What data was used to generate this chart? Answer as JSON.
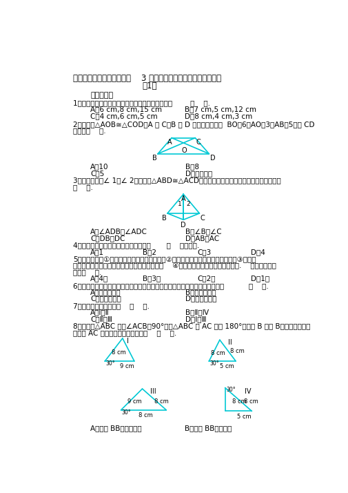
{
  "bg_color": "#ffffff",
  "cyan_color": "#00c8d4",
  "title_line1": "北师大版七年级数学下册第    3 章《三角形》单元测试试卷及答案",
  "title_line2": "（1）",
  "q1": "1．以下列各组长度的线段为边，能构成三角形的是        （    ）.",
  "q1A": "A．6 cm,8 cm,15 cm",
  "q1B": "B．7 cm,5 cm,12 cm",
  "q1C": "C．4 cm,6 cm,5 cm",
  "q1D": "D．8 cm,4 cm,3 cm",
  "q2": "2．如图，△AOB≅△COD，A 和 C，B 和 D 是对应顶点，若  BO＝6，AO＝3，AB＝5，则 CD",
  "q2b": "的长为（    ）.",
  "q2A": "A．10",
  "q2B": "B．8",
  "q2C": "C．5",
  "q2D": "D．不能确定",
  "q3": "3．如图，已知∠ 1＝∠ 2，要说明△ABD≅△ACD，还需从下列条件中选一个，错误的选法是",
  "q3b": "（    ）.",
  "q3A": "A．∠ADB＝∠ADC",
  "q3B": "B．∠B＝∠C",
  "q3C": "C．DB＝DC",
  "q3D": "D．AB＝AC",
  "q4": "4．要使五边形木架不变形，须至少钉上       （    ）根木条.",
  "q4A": "A．1",
  "q4B": "B．2",
  "q4C": "C．3",
  "q4D": "D．4",
  "q5a": "5．下列语句：①面积相等的两个三角形全等；②两个等边三角形一定是全等图形；③如果两",
  "q5b": "个三角形全等，它们的形状和大小一定都相同；    ④边数相同的图形一定能互相重合.    其中错误的说",
  "q5c": "法有（    ）.",
  "q5A": "A．4个",
  "q5B": "B．3个",
  "q5C": "C．2个",
  "q5D": "D．1个",
  "q6": "6．如果一个三角形的三条高所在直线的交点在三角形外部，那么这个三角形是           （    ）.",
  "q6A": "A．锐角三角形",
  "q6B": "B．直角三角形",
  "q6C": "C．钝角三角形",
  "q6D": "D．等边三角形",
  "q7": "7．图中全等的三角形是    （    ）.",
  "q7A": "A．Ⅰ和Ⅱ",
  "q7B": "B．Ⅱ和Ⅳ",
  "q7C": "C．Ⅱ和Ⅲ",
  "q7D": "D．Ⅰ和Ⅲ",
  "q8a": "8．如图，△ABC 中，∠ACB＝90°，把△ABC 沿 AC 翻折 180°，使点 B 落在 B＇的位置，则关",
  "q8b": "于线段 AC 的性质中，正确的说法是    （    ）.",
  "q8A": "A．是边 BB＇上的中线",
  "q8B": "B．是边 BB＇上的高",
  "section": "一、选择题"
}
